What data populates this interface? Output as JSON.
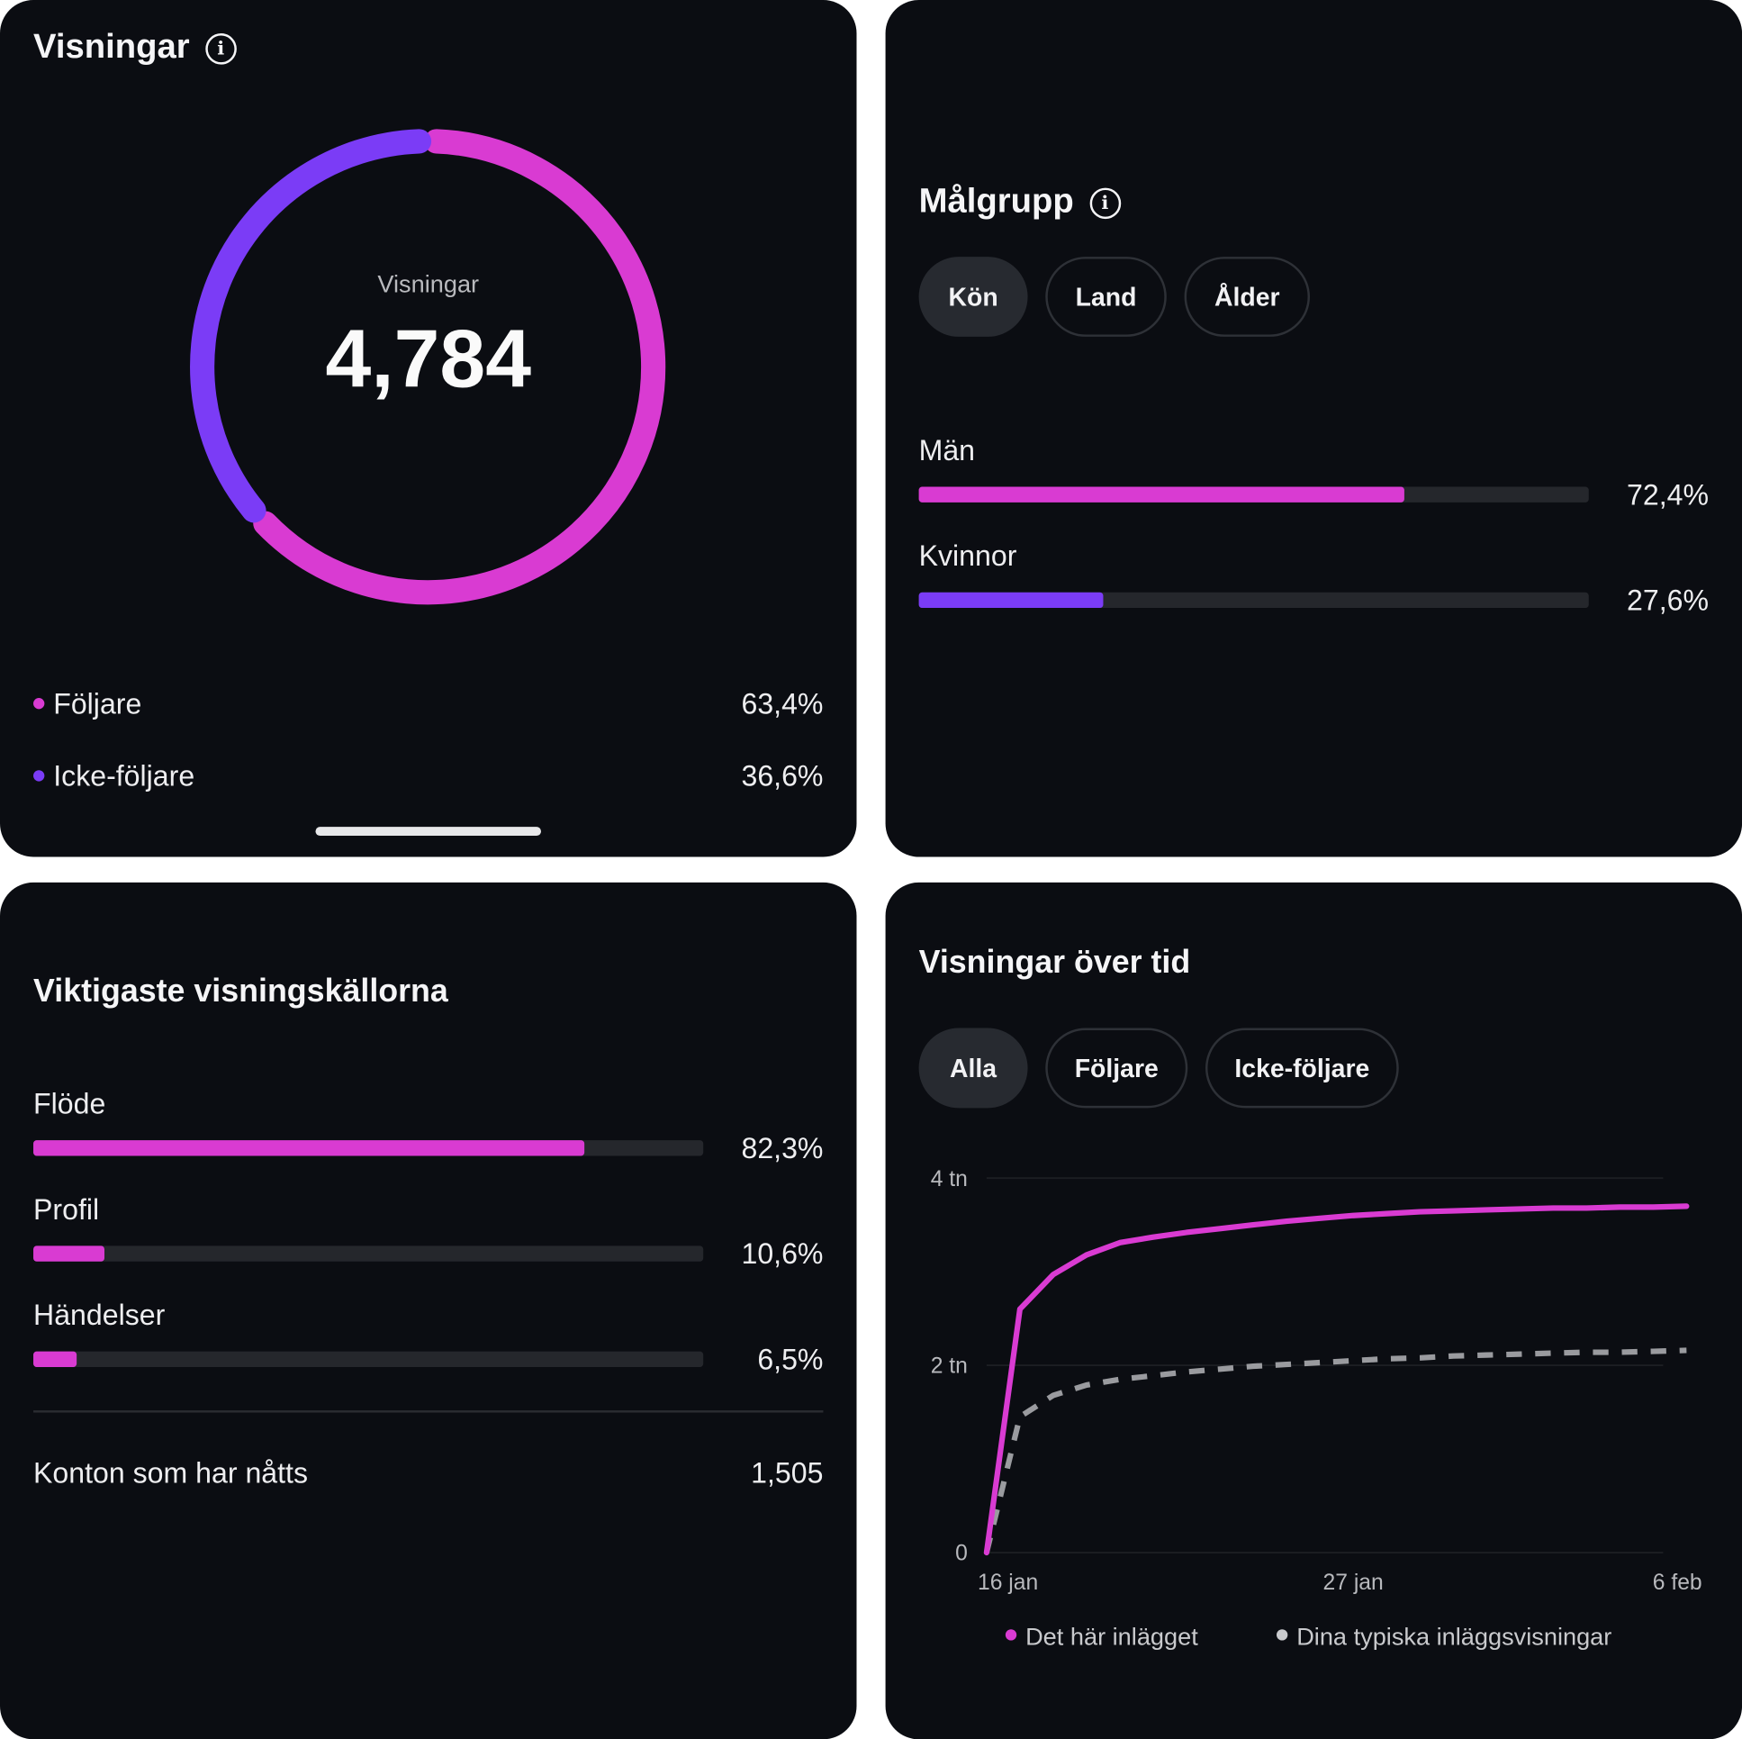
{
  "colors": {
    "pink": "#d93bd2",
    "purple": "#7b3cf6",
    "grey": "#9a9b9f",
    "card": "#0b0d12",
    "track": "#25272c"
  },
  "views": {
    "title": "Visningar",
    "info_icon": "info-icon",
    "center_label": "Visningar",
    "total": "4,784",
    "segments": [
      {
        "label": "Följare",
        "value": "63,4%",
        "percent": 63.4,
        "color": "#d93bd2"
      },
      {
        "label": "Icke-följare",
        "value": "36,6%",
        "percent": 36.6,
        "color": "#7b3cf6"
      }
    ]
  },
  "audience": {
    "title": "Målgrupp",
    "info_icon": "info-icon",
    "tabs": [
      {
        "label": "Kön",
        "active": true
      },
      {
        "label": "Land",
        "active": false
      },
      {
        "label": "Ålder",
        "active": false
      }
    ],
    "rows": [
      {
        "label": "Män",
        "value": "72,4%",
        "percent": 72.4,
        "color": "#d93bd2"
      },
      {
        "label": "Kvinnor",
        "value": "27,6%",
        "percent": 27.6,
        "color": "#7b3cf6"
      }
    ]
  },
  "sources": {
    "title": "Viktigaste visningskällorna",
    "rows": [
      {
        "label": "Flöde",
        "value": "82,3%",
        "percent": 82.3
      },
      {
        "label": "Profil",
        "value": "10,6%",
        "percent": 10.6
      },
      {
        "label": "Händelser",
        "value": "6,5%",
        "percent": 6.5
      }
    ],
    "reached_label": "Konton som har nåtts",
    "reached_value": "1,505"
  },
  "over_time": {
    "title": "Visningar över tid",
    "tabs": [
      {
        "label": "Alla",
        "active": true
      },
      {
        "label": "Följare",
        "active": false
      },
      {
        "label": "Icke-följare",
        "active": false
      }
    ]
  },
  "chart_data": {
    "type": "line",
    "title": "Visningar över tid",
    "x": [
      "16 jan",
      "17 jan",
      "18 jan",
      "19 jan",
      "20 jan",
      "21 jan",
      "22 jan",
      "23 jan",
      "24 jan",
      "25 jan",
      "26 jan",
      "27 jan",
      "28 jan",
      "29 jan",
      "30 jan",
      "31 jan",
      "1 feb",
      "2 feb",
      "3 feb",
      "4 feb",
      "5 feb",
      "6 feb"
    ],
    "x_ticks": [
      "16 jan",
      "27 jan",
      "6 feb"
    ],
    "y_ticks": [
      {
        "value": 0,
        "label": "0"
      },
      {
        "value": 2,
        "label": "2 tn"
      },
      {
        "value": 4,
        "label": "4 tn"
      }
    ],
    "ylim": [
      0,
      4
    ],
    "y_unit": "tn",
    "grid": true,
    "legend_placement": "bottom",
    "series": [
      {
        "name": "Det här inlägget",
        "color": "#d93bd2",
        "style": "solid",
        "values": [
          0,
          2.6,
          2.97,
          3.18,
          3.31,
          3.37,
          3.42,
          3.46,
          3.5,
          3.54,
          3.57,
          3.6,
          3.62,
          3.64,
          3.65,
          3.66,
          3.67,
          3.68,
          3.68,
          3.69,
          3.69,
          3.7
        ]
      },
      {
        "name": "Dina typiska inläggsvisningar",
        "color": "#9a9b9f",
        "style": "dashed",
        "values": [
          0,
          1.45,
          1.68,
          1.79,
          1.85,
          1.89,
          1.93,
          1.96,
          1.99,
          2.01,
          2.03,
          2.05,
          2.07,
          2.08,
          2.1,
          2.11,
          2.12,
          2.13,
          2.14,
          2.14,
          2.15,
          2.16
        ]
      }
    ]
  }
}
